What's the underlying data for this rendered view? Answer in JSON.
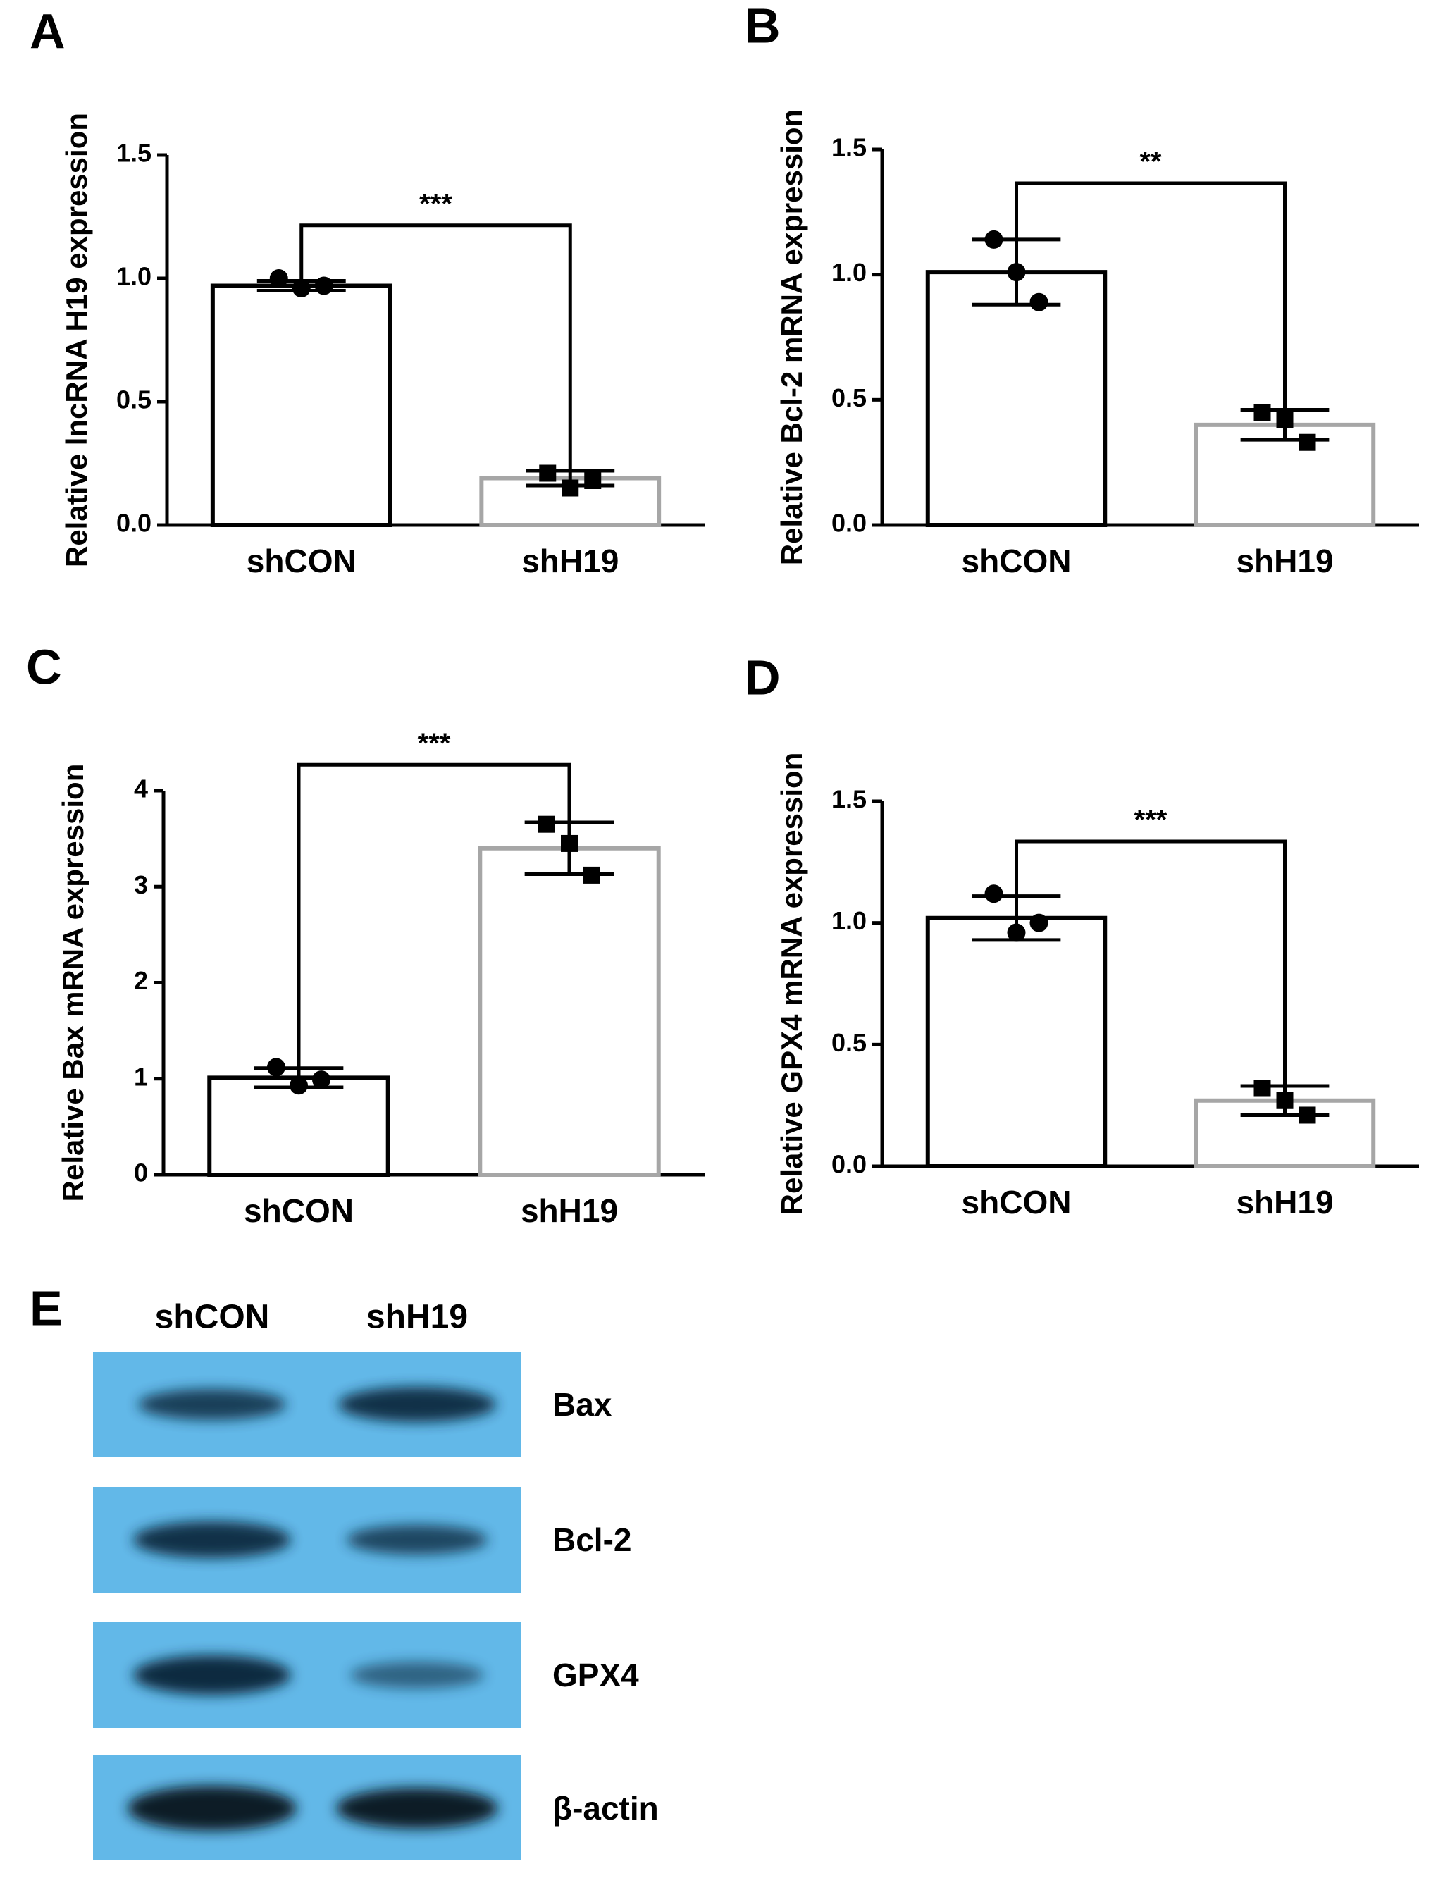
{
  "chart_data": [
    {
      "type": "bar",
      "panel": "A",
      "ylabel": "Relative lncRNA H19 expression",
      "categories": [
        "shCON",
        "shH19"
      ],
      "values": [
        0.97,
        0.19
      ],
      "errors": [
        0.02,
        0.03
      ],
      "points": [
        [
          1.0,
          0.96,
          0.97
        ],
        [
          0.21,
          0.15,
          0.18
        ]
      ],
      "colors": [
        "#000000",
        "#a6a6a6"
      ],
      "markers": [
        "circle",
        "square"
      ],
      "significance": "***",
      "ylim": [
        0,
        1.5
      ],
      "yticks": [
        {
          "value": 0,
          "label": "0.0"
        },
        {
          "value": 0.5,
          "label": "0.5"
        },
        {
          "value": 1,
          "label": "1.0"
        },
        {
          "value": 1.5,
          "label": "1.5"
        }
      ]
    },
    {
      "type": "bar",
      "panel": "B",
      "ylabel": "Relative Bcl-2 mRNA expression",
      "categories": [
        "shCON",
        "shH19"
      ],
      "values": [
        1.01,
        0.4
      ],
      "errors": [
        0.13,
        0.06
      ],
      "points": [
        [
          1.14,
          1.01,
          0.89
        ],
        [
          0.45,
          0.42,
          0.33
        ]
      ],
      "colors": [
        "#000000",
        "#a6a6a6"
      ],
      "markers": [
        "circle",
        "square"
      ],
      "significance": "**",
      "ylim": [
        0,
        1.5
      ],
      "yticks": [
        {
          "value": 0,
          "label": "0.0"
        },
        {
          "value": 0.5,
          "label": "0.5"
        },
        {
          "value": 1,
          "label": "1.0"
        },
        {
          "value": 1.5,
          "label": "1.5"
        }
      ]
    },
    {
      "type": "bar",
      "panel": "C",
      "ylabel": "Relative Bax mRNA expression",
      "categories": [
        "shCON",
        "shH19"
      ],
      "values": [
        1.01,
        3.4
      ],
      "errors": [
        0.1,
        0.27
      ],
      "points": [
        [
          1.12,
          0.93,
          0.99
        ],
        [
          3.65,
          3.45,
          3.12
        ]
      ],
      "colors": [
        "#000000",
        "#a6a6a6"
      ],
      "markers": [
        "circle",
        "square"
      ],
      "significance": "***",
      "ylim": [
        0,
        4
      ],
      "yticks": [
        0,
        1,
        2,
        3,
        4
      ]
    },
    {
      "type": "bar",
      "panel": "D",
      "ylabel": "Relative GPX4 mRNA expression",
      "categories": [
        "shCON",
        "shH19"
      ],
      "values": [
        1.02,
        0.27
      ],
      "errors": [
        0.09,
        0.06
      ],
      "points": [
        [
          1.12,
          0.96,
          1.0
        ],
        [
          0.32,
          0.27,
          0.21
        ]
      ],
      "colors": [
        "#000000",
        "#a6a6a6"
      ],
      "markers": [
        "circle",
        "square"
      ],
      "significance": "***",
      "ylim": [
        0,
        1.5
      ],
      "yticks": [
        {
          "value": 0,
          "label": "0.0"
        },
        {
          "value": 0.5,
          "label": "0.5"
        },
        {
          "value": 1,
          "label": "1.0"
        },
        {
          "value": 1.5,
          "label": "1.5"
        }
      ]
    }
  ],
  "blot": {
    "panel": "E",
    "lanes": [
      "shCON",
      "shH19"
    ],
    "bands": [
      "Bax",
      "Bcl-2",
      "GPX4",
      "β-actin"
    ]
  }
}
